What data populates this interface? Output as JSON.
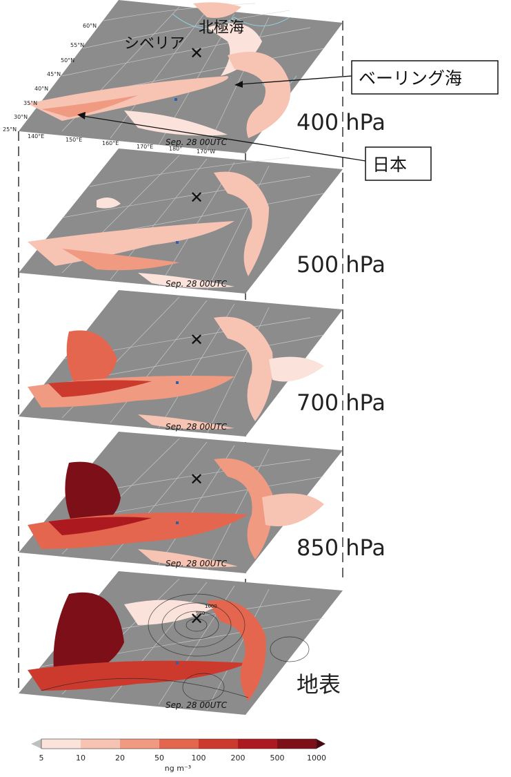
{
  "panels": [
    {
      "level": "400 hPa",
      "timestamp": "Sep. 28 00UTC"
    },
    {
      "level": "500 hPa",
      "timestamp": "Sep. 28 00UTC"
    },
    {
      "level": "700 hPa",
      "timestamp": "Sep. 28 00UTC"
    },
    {
      "level": "850 hPa",
      "timestamp": "Sep. 28 00UTC"
    },
    {
      "level": "地表",
      "timestamp": "Sep. 28 00UTC"
    }
  ],
  "lat_labels": [
    "25°N",
    "30°N",
    "35°N",
    "40°N",
    "45°N",
    "50°N",
    "55°N",
    "60°N"
  ],
  "lon_labels": [
    "140°E",
    "150°E",
    "160°E",
    "170°E",
    "180°",
    "170°W"
  ],
  "map_labels": {
    "arctic": "北極海",
    "siberia": "シベリア"
  },
  "callouts": {
    "bering": "ベーリング海",
    "japan": "日本"
  },
  "contour_labels": [
    "1000",
    "980"
  ],
  "colorbar": {
    "ticks": [
      "5",
      "10",
      "20",
      "50",
      "100",
      "200",
      "500",
      "1000"
    ],
    "unit": "ng m⁻³",
    "colors": [
      "#fbe3dc",
      "#f7c4b4",
      "#f09a82",
      "#e4664e",
      "#cc3a2e",
      "#ac1a20",
      "#7c0f18"
    ]
  },
  "colors": {
    "land": "#8c8c8c",
    "coast": "#8fd6e6",
    "plume_light": "#fbe3dc",
    "plume_mid": "#f09a82",
    "plume_dark": "#ac1a20"
  }
}
